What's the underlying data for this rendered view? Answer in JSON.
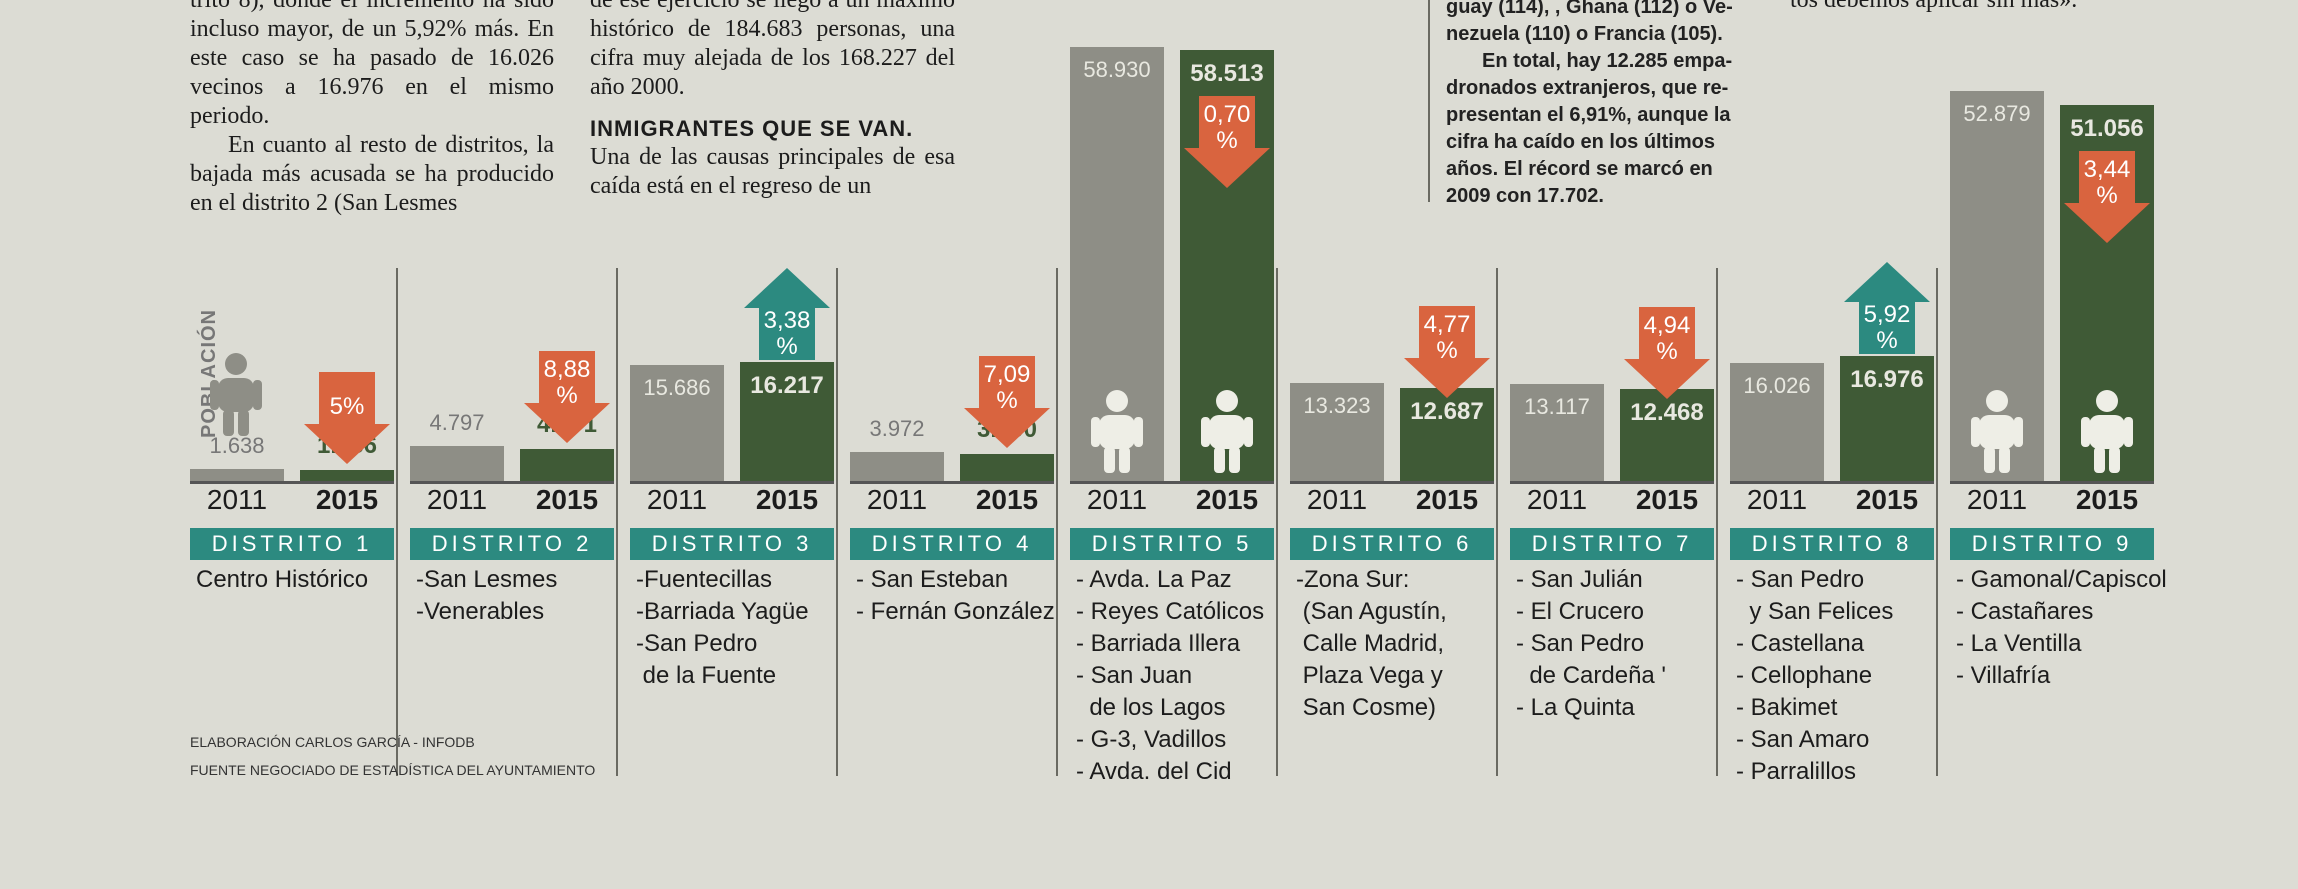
{
  "article": {
    "col1": {
      "p1": "trito 8), donde el incremento ha sido incluso mayor, de un 5,92% más. En este caso se ha pasado de 16.026 vecinos a 16.976 en el mismo periodo.",
      "p2": "En cuanto al resto de distritos, la bajada más acusada se ha producido en el distrito 2 (San Lesmes"
    },
    "col2": {
      "p1": "de ese ejercicio se llegó a un máximo histórico de 184.683 personas, una cifra muy alejada de los 168.227 del año 2000.",
      "heading": "INMIGRANTES QUE SE VAN.",
      "p2": "Una de las causas principales de esa caída está en el regreso de un"
    },
    "sidebox": {
      "l1": "guay (114), , Ghana (112) o Ve-",
      "l2": "nezuela (110) o Francia (105).",
      "l3": "En total, hay 12.285 empa-",
      "l4": "dronados extranjeros, que re-",
      "l5": "presentan el 6,91%, aunque la",
      "l6": "cifra ha caído en los últimos",
      "l7": "años. El récord se marcó en",
      "l8": "2009 con 17.702."
    },
    "col4": {
      "p1": "tos debemos aplicar sin más»."
    }
  },
  "chart_data": {
    "type": "bar",
    "ylabel": "POBLACIÓN",
    "years": [
      "2011",
      "2015"
    ],
    "districts": [
      {
        "name": "DISTRITO 1",
        "v2011": 1638,
        "v2015": 1556,
        "l2011": "1.638",
        "l2015": "1.556",
        "change": "5%",
        "dir": "down",
        "neighborhoods": "Centro Histórico"
      },
      {
        "name": "DISTRITO 2",
        "v2011": 4797,
        "v2015": 4371,
        "l2011": "4.797",
        "l2015": "4.371",
        "change": "8,88\n%",
        "dir": "down",
        "neighborhoods": "-San Lesmes\n-Venerables"
      },
      {
        "name": "DISTRITO 3",
        "v2011": 15686,
        "v2015": 16217,
        "l2011": "15.686",
        "l2015": "16.217",
        "change": "3,38\n%",
        "dir": "up",
        "neighborhoods": "-Fuentecillas\n-Barriada Yagüe\n-San Pedro\n de la Fuente"
      },
      {
        "name": "DISTRITO 4",
        "v2011": 3972,
        "v2015": 3690,
        "l2011": "3.972",
        "l2015": "3.690",
        "change": "7,09\n%",
        "dir": "down",
        "neighborhoods": "- San Esteban\n- Fernán González"
      },
      {
        "name": "DISTRITO 5",
        "v2011": 58930,
        "v2015": 58513,
        "l2011": "58.930",
        "l2015": "58.513",
        "change": "0,70\n%",
        "dir": "down",
        "neighborhoods": "- Avda. La Paz\n- Reyes Católicos\n- Barriada Illera\n- San Juan\n  de los Lagos\n- G-3, Vadillos\n- Avda. del Cid"
      },
      {
        "name": "DISTRITO 6",
        "v2011": 13323,
        "v2015": 12687,
        "l2011": "13.323",
        "l2015": "12.687",
        "change": "4,77\n%",
        "dir": "down",
        "neighborhoods": "-Zona Sur:\n (San Agustín,\n Calle Madrid,\n Plaza Vega y\n San Cosme)"
      },
      {
        "name": "DISTRITO 7",
        "v2011": 13117,
        "v2015": 12468,
        "l2011": "13.117",
        "l2015": "12.468",
        "change": "4,94\n%",
        "dir": "down",
        "neighborhoods": "- San Julián\n- El Crucero\n- San Pedro\n  de Cardeña '\n- La Quinta"
      },
      {
        "name": "DISTRITO 8",
        "v2011": 16026,
        "v2015": 16976,
        "l2011": "16.026",
        "l2015": "16.976",
        "change": "5,92\n%",
        "dir": "up",
        "neighborhoods": "- San Pedro\n  y San Felices\n- Castellana\n- Cellophane\n- Bakimet\n- San Amaro\n- Parralillos"
      },
      {
        "name": "DISTRITO 9",
        "v2011": 52879,
        "v2015": 51056,
        "l2011": "52.879",
        "l2015": "51.056",
        "change": "3,44\n%",
        "dir": "down",
        "neighborhoods": "- Gamonal/Capiscol\n- Castañares\n- La Ventilla\n- Villafría"
      }
    ]
  },
  "credits": {
    "line1": "ELABORACIÓN CARLOS GARCÍA - INFODB",
    "line2": "FUENTE NEGOCIADO DE ESTADÍSTICA DEL AYUNTAMIENTO"
  },
  "colors": {
    "bar2011": "#8e8e86",
    "bar2015": "#3f5a36",
    "down": "#d9643f",
    "up": "#2c8a80",
    "banner": "#2c8a80"
  }
}
